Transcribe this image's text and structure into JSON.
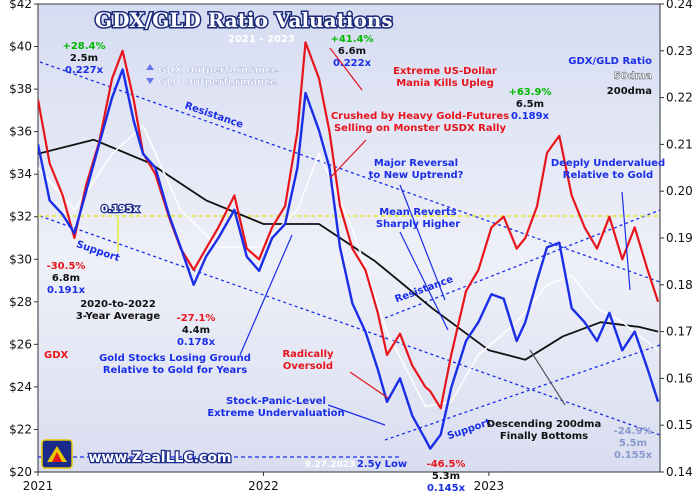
{
  "chart_data": {
    "type": "line",
    "title": "GDX/GLD Ratio Valuations",
    "subtitle": "2021 - 2023",
    "left_axis": {
      "label": "GDX",
      "ylim": [
        20,
        42
      ],
      "ticks": [
        "$20",
        "$22",
        "$24",
        "$26",
        "$28",
        "$30",
        "$32",
        "$34",
        "$36",
        "$38",
        "$40",
        "$42"
      ]
    },
    "right_axis": {
      "label": "GDX/GLD Ratio",
      "ylim": [
        0.14,
        0.24
      ],
      "ticks": [
        "0.14",
        "0.15",
        "0.16",
        "0.17",
        "0.18",
        "0.19",
        "0.20",
        "0.21",
        "0.22",
        "0.23",
        "0.24"
      ]
    },
    "x_ticks": [
      "2021",
      "2022",
      "2023"
    ],
    "xlim": [
      "2021-01-01",
      "2023-10-05"
    ],
    "grid": false,
    "legend": {
      "position": "right",
      "items": [
        "GDX/GLD Ratio",
        "50dma",
        "200dma"
      ]
    },
    "series": [
      {
        "name": "GDX",
        "axis": "left",
        "color": "#e8141b",
        "x": [
          "2021-01-01",
          "2021-01-20",
          "2021-02-10",
          "2021-03-01",
          "2021-03-20",
          "2021-04-10",
          "2021-05-01",
          "2021-05-18",
          "2021-06-05",
          "2021-06-20",
          "2021-07-10",
          "2021-08-01",
          "2021-08-20",
          "2021-09-10",
          "2021-09-30",
          "2021-10-20",
          "2021-11-15",
          "2021-12-05",
          "2021-12-25",
          "2022-01-15",
          "2022-02-05",
          "2022-02-25",
          "2022-03-10",
          "2022-04-01",
          "2022-04-18",
          "2022-05-05",
          "2022-05-25",
          "2022-06-15",
          "2022-07-05",
          "2022-07-20",
          "2022-08-10",
          "2022-08-30",
          "2022-09-20",
          "2022-09-28",
          "2022-10-15",
          "2022-11-01",
          "2022-11-25",
          "2022-12-15",
          "2023-01-05",
          "2023-01-25",
          "2023-02-15",
          "2023-03-01",
          "2023-03-20",
          "2023-04-05",
          "2023-04-25",
          "2023-05-15",
          "2023-06-05",
          "2023-06-25",
          "2023-07-15",
          "2023-08-05",
          "2023-08-25",
          "2023-09-15",
          "2023-10-02"
        ],
        "values": [
          37.5,
          34.5,
          33.0,
          31.0,
          33.5,
          35.5,
          38.5,
          39.8,
          37.5,
          35.0,
          34.0,
          32.0,
          30.5,
          29.5,
          30.5,
          31.5,
          33.0,
          30.5,
          30.0,
          31.5,
          32.5,
          36.0,
          40.2,
          38.5,
          36.0,
          32.5,
          30.5,
          29.5,
          27.5,
          25.5,
          26.5,
          25.0,
          24.0,
          23.8,
          23.0,
          25.5,
          28.5,
          29.5,
          31.5,
          32.0,
          30.5,
          31.0,
          32.5,
          35.0,
          35.8,
          33.0,
          31.5,
          30.5,
          32.0,
          30.0,
          31.5,
          29.5,
          28.0
        ]
      },
      {
        "name": "GDX/GLD Ratio",
        "axis": "right",
        "color": "#1a2ee8",
        "x": [
          "2021-01-01",
          "2021-01-20",
          "2021-02-10",
          "2021-03-01",
          "2021-03-20",
          "2021-04-10",
          "2021-05-01",
          "2021-05-18",
          "2021-06-05",
          "2021-06-20",
          "2021-07-10",
          "2021-08-01",
          "2021-08-20",
          "2021-09-10",
          "2021-09-30",
          "2021-10-20",
          "2021-11-15",
          "2021-12-05",
          "2021-12-25",
          "2022-01-15",
          "2022-02-05",
          "2022-02-25",
          "2022-03-10",
          "2022-04-01",
          "2022-04-18",
          "2022-05-05",
          "2022-05-25",
          "2022-06-15",
          "2022-07-05",
          "2022-07-20",
          "2022-08-10",
          "2022-08-30",
          "2022-09-20",
          "2022-09-28",
          "2022-10-15",
          "2022-11-01",
          "2022-11-25",
          "2022-12-15",
          "2023-01-05",
          "2023-01-25",
          "2023-02-15",
          "2023-03-01",
          "2023-03-20",
          "2023-04-05",
          "2023-04-25",
          "2023-05-15",
          "2023-06-05",
          "2023-06-25",
          "2023-07-15",
          "2023-08-05",
          "2023-08-25",
          "2023-09-15",
          "2023-10-02"
        ],
        "values": [
          0.21,
          0.198,
          0.195,
          0.191,
          0.2,
          0.21,
          0.22,
          0.226,
          0.215,
          0.208,
          0.205,
          0.195,
          0.188,
          0.18,
          0.186,
          0.19,
          0.196,
          0.186,
          0.183,
          0.19,
          0.193,
          0.205,
          0.221,
          0.213,
          0.205,
          0.188,
          0.176,
          0.17,
          0.162,
          0.155,
          0.16,
          0.152,
          0.147,
          0.145,
          0.148,
          0.158,
          0.168,
          0.172,
          0.178,
          0.177,
          0.168,
          0.172,
          0.181,
          0.188,
          0.189,
          0.175,
          0.172,
          0.168,
          0.174,
          0.166,
          0.17,
          0.162,
          0.155
        ]
      },
      {
        "name": "50dma",
        "axis": "right",
        "color": "#ffffff",
        "x": [
          "2021-01-01",
          "2021-03-01",
          "2021-05-01",
          "2021-06-20",
          "2021-08-20",
          "2021-10-20",
          "2021-12-25",
          "2022-02-25",
          "2022-04-01",
          "2022-05-25",
          "2022-07-20",
          "2022-09-20",
          "2022-11-01",
          "2022-12-15",
          "2023-02-15",
          "2023-04-05",
          "2023-05-15",
          "2023-06-25",
          "2023-08-05",
          "2023-10-02"
        ],
        "values": [
          0.205,
          0.196,
          0.208,
          0.214,
          0.196,
          0.188,
          0.188,
          0.196,
          0.208,
          0.192,
          0.17,
          0.154,
          0.155,
          0.165,
          0.172,
          0.18,
          0.182,
          0.175,
          0.172,
          0.166
        ]
      },
      {
        "name": "200dma",
        "axis": "right",
        "color": "#111111",
        "x": [
          "2021-01-01",
          "2021-04-01",
          "2021-07-01",
          "2021-10-01",
          "2022-01-01",
          "2022-04-01",
          "2022-07-01",
          "2022-10-01",
          "2023-01-01",
          "2023-03-01",
          "2023-05-01",
          "2023-07-01",
          "2023-09-01",
          "2023-10-02"
        ],
        "values": [
          0.208,
          0.211,
          0.206,
          0.198,
          0.193,
          0.193,
          0.185,
          0.175,
          0.166,
          0.164,
          0.169,
          0.172,
          0.171,
          0.17
        ]
      }
    ],
    "lines": [
      {
        "kind": "average",
        "value": 0.195,
        "label": "0.195x",
        "color": "#e8e800"
      }
    ],
    "annotations": [
      {
        "text": "+28.4%",
        "color": "#00c800"
      },
      {
        "text": "2.5m"
      },
      {
        "text": "0.227x"
      },
      {
        "text": "GDX Outperformance",
        "color": "#ffffff"
      },
      {
        "text": "GLD Outperformance",
        "color": "#ffffff"
      },
      {
        "text": "+41.4%",
        "color": "#00c800"
      },
      {
        "text": "6.6m"
      },
      {
        "text": "0.222x"
      },
      {
        "text": "Extreme US-Dollar",
        "color": "#e8141b"
      },
      {
        "text": "Mania Kills Upleg",
        "color": "#e8141b"
      },
      {
        "text": "+63.9%",
        "color": "#00c800"
      },
      {
        "text": "6.5m"
      },
      {
        "text": "0.189x"
      },
      {
        "text": "Resistance"
      },
      {
        "text": "Crushed by Heavy Gold-Futures",
        "color": "#e8141b"
      },
      {
        "text": "Selling on Monster USDX Rally",
        "color": "#e8141b"
      },
      {
        "text": "Major Reversal"
      },
      {
        "text": "to New Uptrend?"
      },
      {
        "text": "Deeply Undervalued"
      },
      {
        "text": "Relative to Gold"
      },
      {
        "text": "Mean Reverts"
      },
      {
        "text": "Sharply Higher"
      },
      {
        "text": "-30.5%",
        "color": "#e8141b"
      },
      {
        "text": "6.8m"
      },
      {
        "text": "0.191x"
      },
      {
        "text": "Support"
      },
      {
        "text": "Resistance"
      },
      {
        "text": "2020-to-2022"
      },
      {
        "text": "3-Year Average"
      },
      {
        "text": "-27.1%",
        "color": "#e8141b"
      },
      {
        "text": "4.4m"
      },
      {
        "text": "0.178x"
      },
      {
        "text": "GDX",
        "color": "#e8141b"
      },
      {
        "text": "Gold Stocks Losing Ground"
      },
      {
        "text": "Relative to Gold for Years"
      },
      {
        "text": "Radically",
        "color": "#e8141b"
      },
      {
        "text": "Oversold",
        "color": "#e8141b"
      },
      {
        "text": "Stock-Panic-Level"
      },
      {
        "text": "Extreme Undervaluation"
      },
      {
        "text": "Support"
      },
      {
        "text": "Descending 200dma"
      },
      {
        "text": "Finally Bottoms"
      },
      {
        "text": "-24.9%"
      },
      {
        "text": "5.5m"
      },
      {
        "text": "0.155x"
      },
      {
        "text": "2.5y Low"
      },
      {
        "text": "-46.5%",
        "color": "#e8141b"
      },
      {
        "text": "5.3m"
      },
      {
        "text": "0.145x"
      },
      {
        "text": "9.27.2023"
      },
      {
        "text": "www.ZealLLC.com"
      }
    ]
  }
}
